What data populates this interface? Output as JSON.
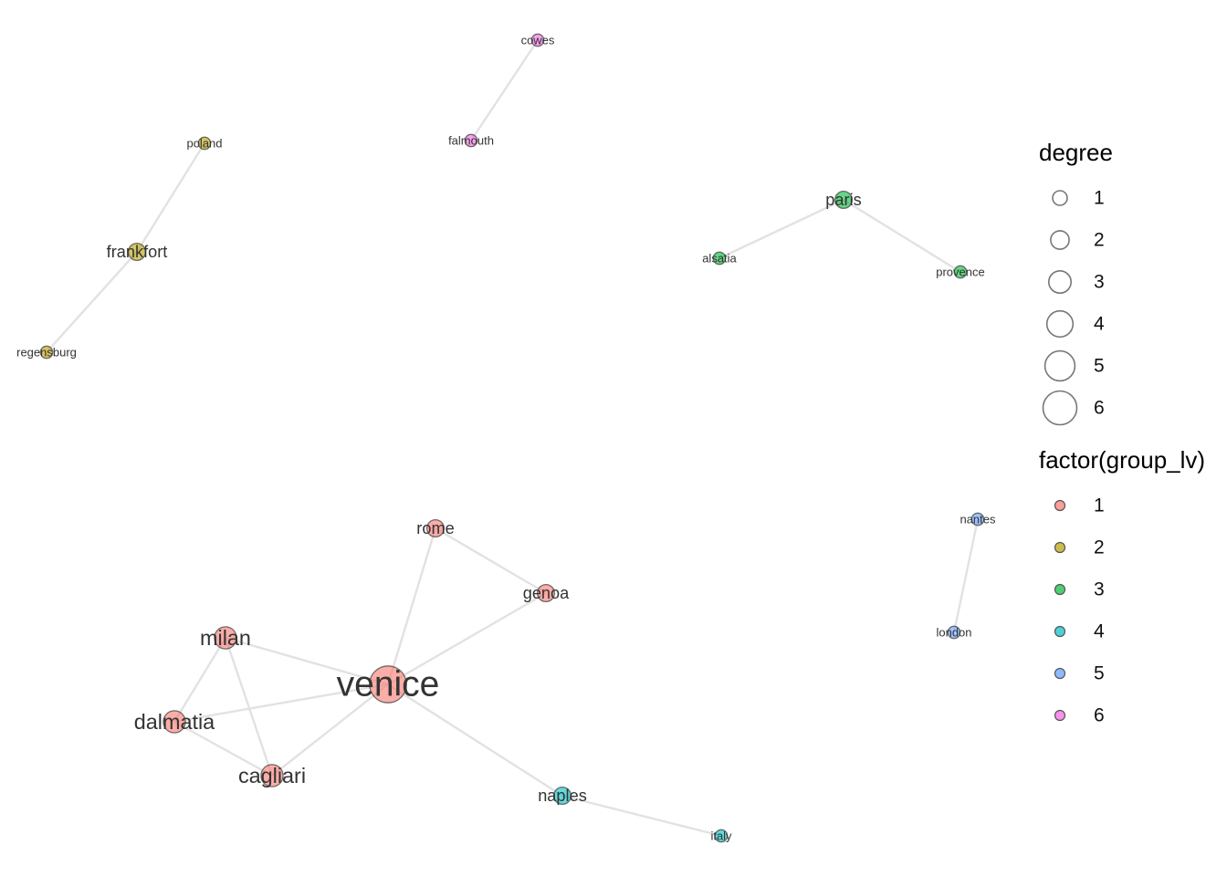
{
  "chart_data": {
    "type": "network",
    "nodes": [
      {
        "id": "venice",
        "label": "venice",
        "degree": 6,
        "group": 1
      },
      {
        "id": "milan",
        "label": "milan",
        "degree": 3,
        "group": 1
      },
      {
        "id": "dalmatia",
        "label": "dalmatia",
        "degree": 3,
        "group": 1
      },
      {
        "id": "cagliari",
        "label": "cagliari",
        "degree": 3,
        "group": 1
      },
      {
        "id": "rome",
        "label": "rome",
        "degree": 2,
        "group": 1
      },
      {
        "id": "genoa",
        "label": "genoa",
        "degree": 2,
        "group": 1
      },
      {
        "id": "frankfort",
        "label": "frankfort",
        "degree": 2,
        "group": 2
      },
      {
        "id": "poland",
        "label": "poland",
        "degree": 1,
        "group": 2
      },
      {
        "id": "regensburg",
        "label": "regensburg",
        "degree": 1,
        "group": 2
      },
      {
        "id": "paris",
        "label": "paris",
        "degree": 2,
        "group": 3
      },
      {
        "id": "alsatia",
        "label": "alsatia",
        "degree": 1,
        "group": 3
      },
      {
        "id": "provence",
        "label": "provence",
        "degree": 1,
        "group": 3
      },
      {
        "id": "naples",
        "label": "naples",
        "degree": 2,
        "group": 4
      },
      {
        "id": "italy",
        "label": "italy",
        "degree": 1,
        "group": 4
      },
      {
        "id": "nantes",
        "label": "nantes",
        "degree": 1,
        "group": 5
      },
      {
        "id": "london",
        "label": "london",
        "degree": 1,
        "group": 5
      },
      {
        "id": "cowes",
        "label": "cowes",
        "degree": 1,
        "group": 6
      },
      {
        "id": "falmouth",
        "label": "falmouth",
        "degree": 1,
        "group": 6
      }
    ],
    "edges": [
      [
        "venice",
        "milan"
      ],
      [
        "venice",
        "dalmatia"
      ],
      [
        "venice",
        "cagliari"
      ],
      [
        "venice",
        "rome"
      ],
      [
        "venice",
        "genoa"
      ],
      [
        "venice",
        "naples"
      ],
      [
        "milan",
        "dalmatia"
      ],
      [
        "milan",
        "cagliari"
      ],
      [
        "dalmatia",
        "cagliari"
      ],
      [
        "rome",
        "genoa"
      ],
      [
        "naples",
        "italy"
      ],
      [
        "frankfort",
        "poland"
      ],
      [
        "frankfort",
        "regensburg"
      ],
      [
        "paris",
        "alsatia"
      ],
      [
        "paris",
        "provence"
      ],
      [
        "nantes",
        "london"
      ],
      [
        "cowes",
        "falmouth"
      ]
    ],
    "group_colors": {
      "1": "#F8766D",
      "2": "#B79F00",
      "3": "#00BA38",
      "4": "#00BFC4",
      "5": "#619CFF",
      "6": "#F564E3"
    }
  },
  "legend": {
    "degree_title": "degree",
    "degree_values": [
      "1",
      "2",
      "3",
      "4",
      "5",
      "6"
    ],
    "group_title": "factor(group_lv)",
    "group_values": [
      "1",
      "2",
      "3",
      "4",
      "5",
      "6"
    ]
  }
}
